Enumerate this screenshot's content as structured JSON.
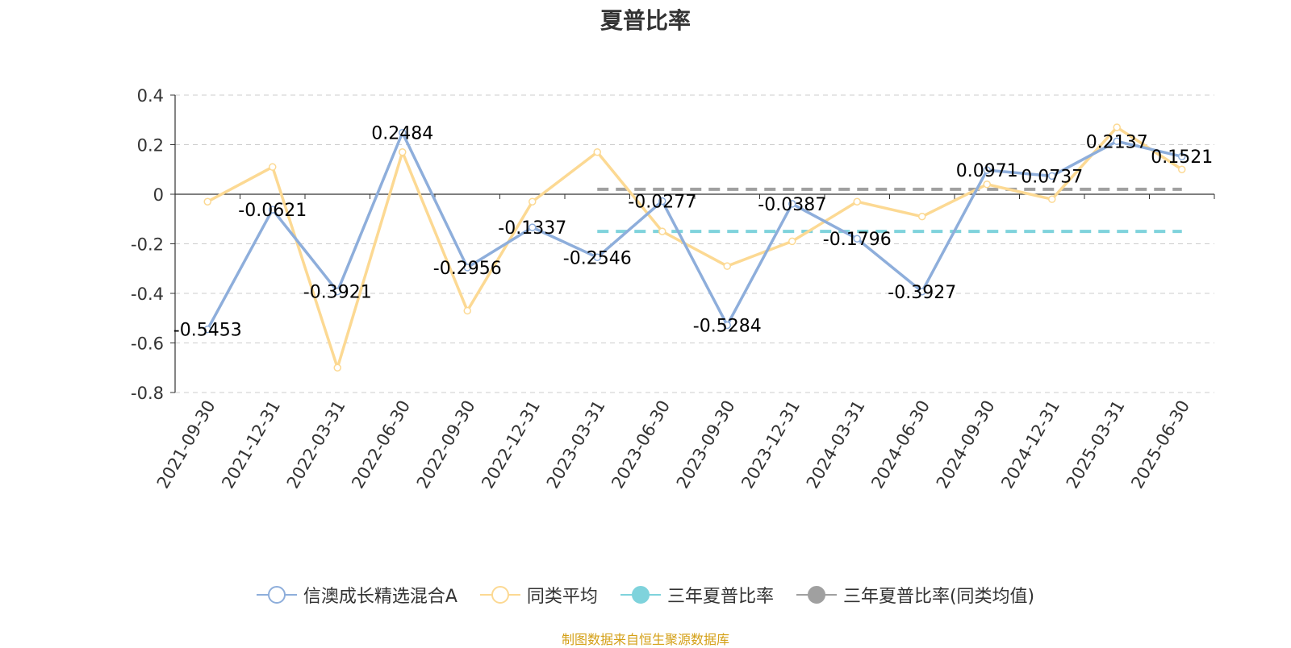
{
  "chart_data": {
    "type": "line",
    "title": "夏普比率",
    "categories": [
      "2021-09-30",
      "2021-12-31",
      "2022-03-31",
      "2022-06-30",
      "2022-09-30",
      "2022-12-31",
      "2023-03-31",
      "2023-06-30",
      "2023-09-30",
      "2023-12-31",
      "2024-03-31",
      "2024-06-30",
      "2024-09-30",
      "2024-12-31",
      "2025-03-31",
      "2025-06-30"
    ],
    "ylim": [
      -0.8,
      0.4
    ],
    "yticks": [
      "0.4",
      "0.2",
      "0",
      "-0.2",
      "-0.4",
      "-0.6",
      "-0.8"
    ],
    "grid": true,
    "legend_position": "bottom",
    "series": [
      {
        "name": "信澳成长精选混合A",
        "color": "#8eaedb",
        "values": [
          -0.5453,
          -0.0621,
          -0.3921,
          0.2484,
          -0.2956,
          -0.1337,
          -0.2546,
          -0.0277,
          -0.5284,
          -0.0387,
          -0.1796,
          -0.3927,
          0.0971,
          0.0737,
          0.2137,
          0.1521
        ],
        "labels": [
          "-0.5453",
          "-0.0621",
          "-0.3921",
          "0.2484",
          "-0.2956",
          "-0.1337",
          "-0.2546",
          "-0.0277",
          "-0.5284",
          "-0.0387",
          "-0.1796",
          "-0.3927",
          "0.0971",
          "0.0737",
          "0.2137",
          "0.1521"
        ]
      },
      {
        "name": "同类平均",
        "color": "#fcd993",
        "values": [
          -0.03,
          0.11,
          -0.7,
          0.17,
          -0.47,
          -0.03,
          0.17,
          -0.15,
          -0.29,
          -0.19,
          -0.03,
          -0.09,
          0.04,
          -0.02,
          0.27,
          0.1
        ]
      },
      {
        "name": "三年夏普比率",
        "color": "#7fd3dc",
        "dashed": true,
        "start_index": 6,
        "end_index": 15,
        "value": -0.15
      },
      {
        "name": "三年夏普比率(同类均值)",
        "color": "#a0a0a0",
        "dashed": true,
        "start_index": 6,
        "end_index": 15,
        "value": 0.02
      }
    ]
  },
  "source_note": "制图数据来自恒生聚源数据库"
}
